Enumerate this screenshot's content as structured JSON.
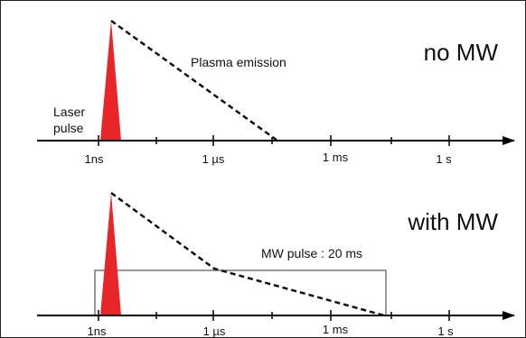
{
  "colors": {
    "pulse": "#e8262a",
    "axis": "#000000",
    "curve": "#111111",
    "box": "#555555",
    "text": "#111111"
  },
  "panels": {
    "top": {
      "title": "no MW",
      "curve_label": "Plasma emission",
      "laser_label_line1": "Laser",
      "laser_label_line2": "pulse",
      "ticks": [
        "1ns",
        "1 µs",
        "1 ms",
        "1 s"
      ]
    },
    "bottom": {
      "title": "with MW",
      "box_label": "MW pulse : 20 ms",
      "ticks": [
        "1ns",
        "1 µs",
        "1 ms",
        "1 s"
      ]
    }
  }
}
